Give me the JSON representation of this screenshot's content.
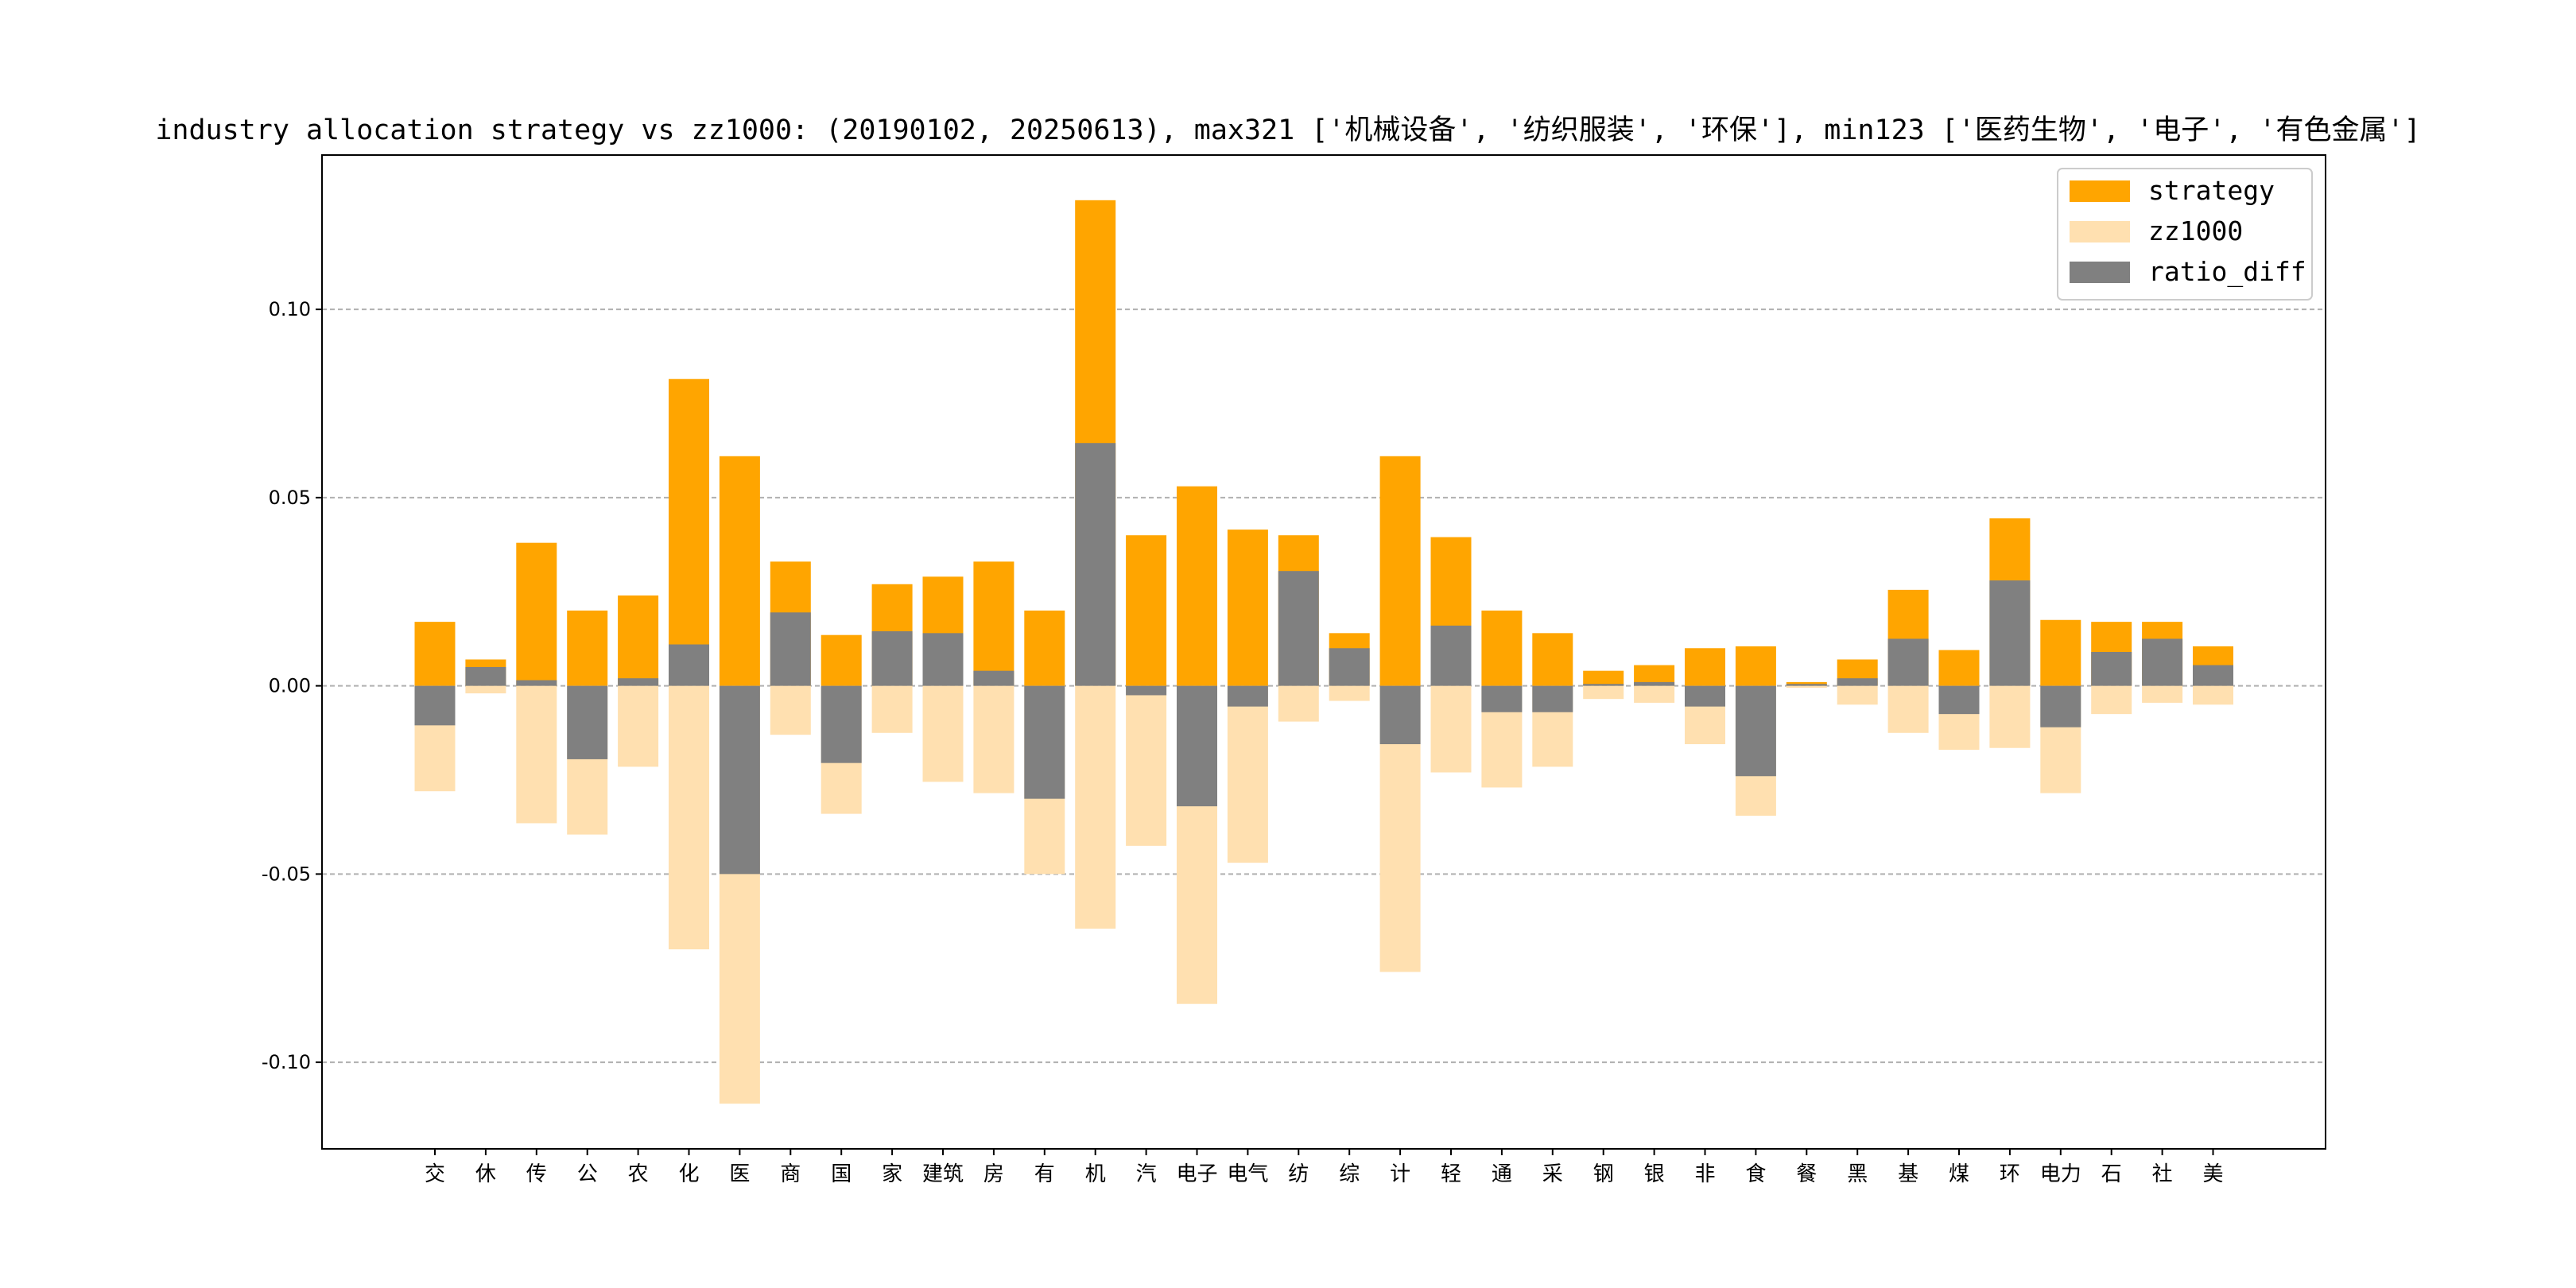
{
  "chart_data": {
    "type": "bar",
    "title": "industry allocation strategy vs zz1000: (20190102, 20250613), max321 ['机械设备', '纺织服装', '环保'], min123 ['医药生物', '电子', '有色金属']",
    "xlabel": "",
    "ylabel": "",
    "ylim": [
      -0.123,
      0.141
    ],
    "yticks": [
      -0.1,
      -0.05,
      0.0,
      0.05,
      0.1
    ],
    "ytick_labels": [
      "-0.10",
      "-0.05",
      "0.00",
      "0.05",
      "0.10"
    ],
    "grid": "y-dashed",
    "legend_position": "top-right",
    "categories": [
      "交",
      "休",
      "传",
      "公",
      "农",
      "化",
      "医",
      "商",
      "国",
      "家",
      "建筑",
      "房",
      "有",
      "机",
      "汽",
      "电子",
      "电气",
      "纺",
      "综",
      "计",
      "轻",
      "通",
      "采",
      "钢",
      "银",
      "非",
      "食",
      "餐",
      "黑",
      "基",
      "煤",
      "环",
      "电力",
      "石",
      "社",
      "美"
    ],
    "series": [
      {
        "name": "strategy",
        "color": "#FFA500",
        "values": [
          0.017,
          0.007,
          0.038,
          0.02,
          0.024,
          0.0815,
          0.061,
          0.033,
          0.0135,
          0.027,
          0.029,
          0.033,
          0.02,
          0.129,
          0.04,
          0.053,
          0.0415,
          0.04,
          0.014,
          0.061,
          0.0395,
          0.02,
          0.014,
          0.004,
          0.0055,
          0.01,
          0.0105,
          0.001,
          0.007,
          0.0255,
          0.0095,
          0.0445,
          0.0175,
          0.017,
          0.017,
          0.0105
        ]
      },
      {
        "name": "zz1000",
        "color": "#FFE0B0",
        "values": [
          -0.028,
          -0.002,
          -0.0365,
          -0.0395,
          -0.0215,
          -0.07,
          -0.111,
          -0.013,
          -0.034,
          -0.0125,
          -0.0255,
          -0.0285,
          -0.05,
          -0.0645,
          -0.0425,
          -0.0845,
          -0.047,
          -0.0095,
          -0.004,
          -0.076,
          -0.023,
          -0.027,
          -0.0215,
          -0.0035,
          -0.0045,
          -0.0155,
          -0.0345,
          -0.0005,
          -0.005,
          -0.0125,
          -0.017,
          -0.0165,
          -0.0285,
          -0.0075,
          -0.0045,
          -0.005
        ]
      },
      {
        "name": "ratio_diff",
        "color": "#808080",
        "values": [
          -0.0105,
          0.005,
          0.0015,
          -0.0195,
          0.002,
          0.011,
          -0.05,
          0.0195,
          -0.0205,
          0.0145,
          0.014,
          0.004,
          -0.03,
          0.0645,
          -0.0025,
          -0.032,
          -0.0055,
          0.0305,
          0.01,
          -0.0155,
          0.016,
          -0.007,
          -0.007,
          0.0005,
          0.001,
          -0.0055,
          -0.024,
          0.0005,
          0.002,
          0.0125,
          -0.0075,
          0.028,
          -0.011,
          0.009,
          0.0125,
          0.0055
        ]
      }
    ]
  }
}
